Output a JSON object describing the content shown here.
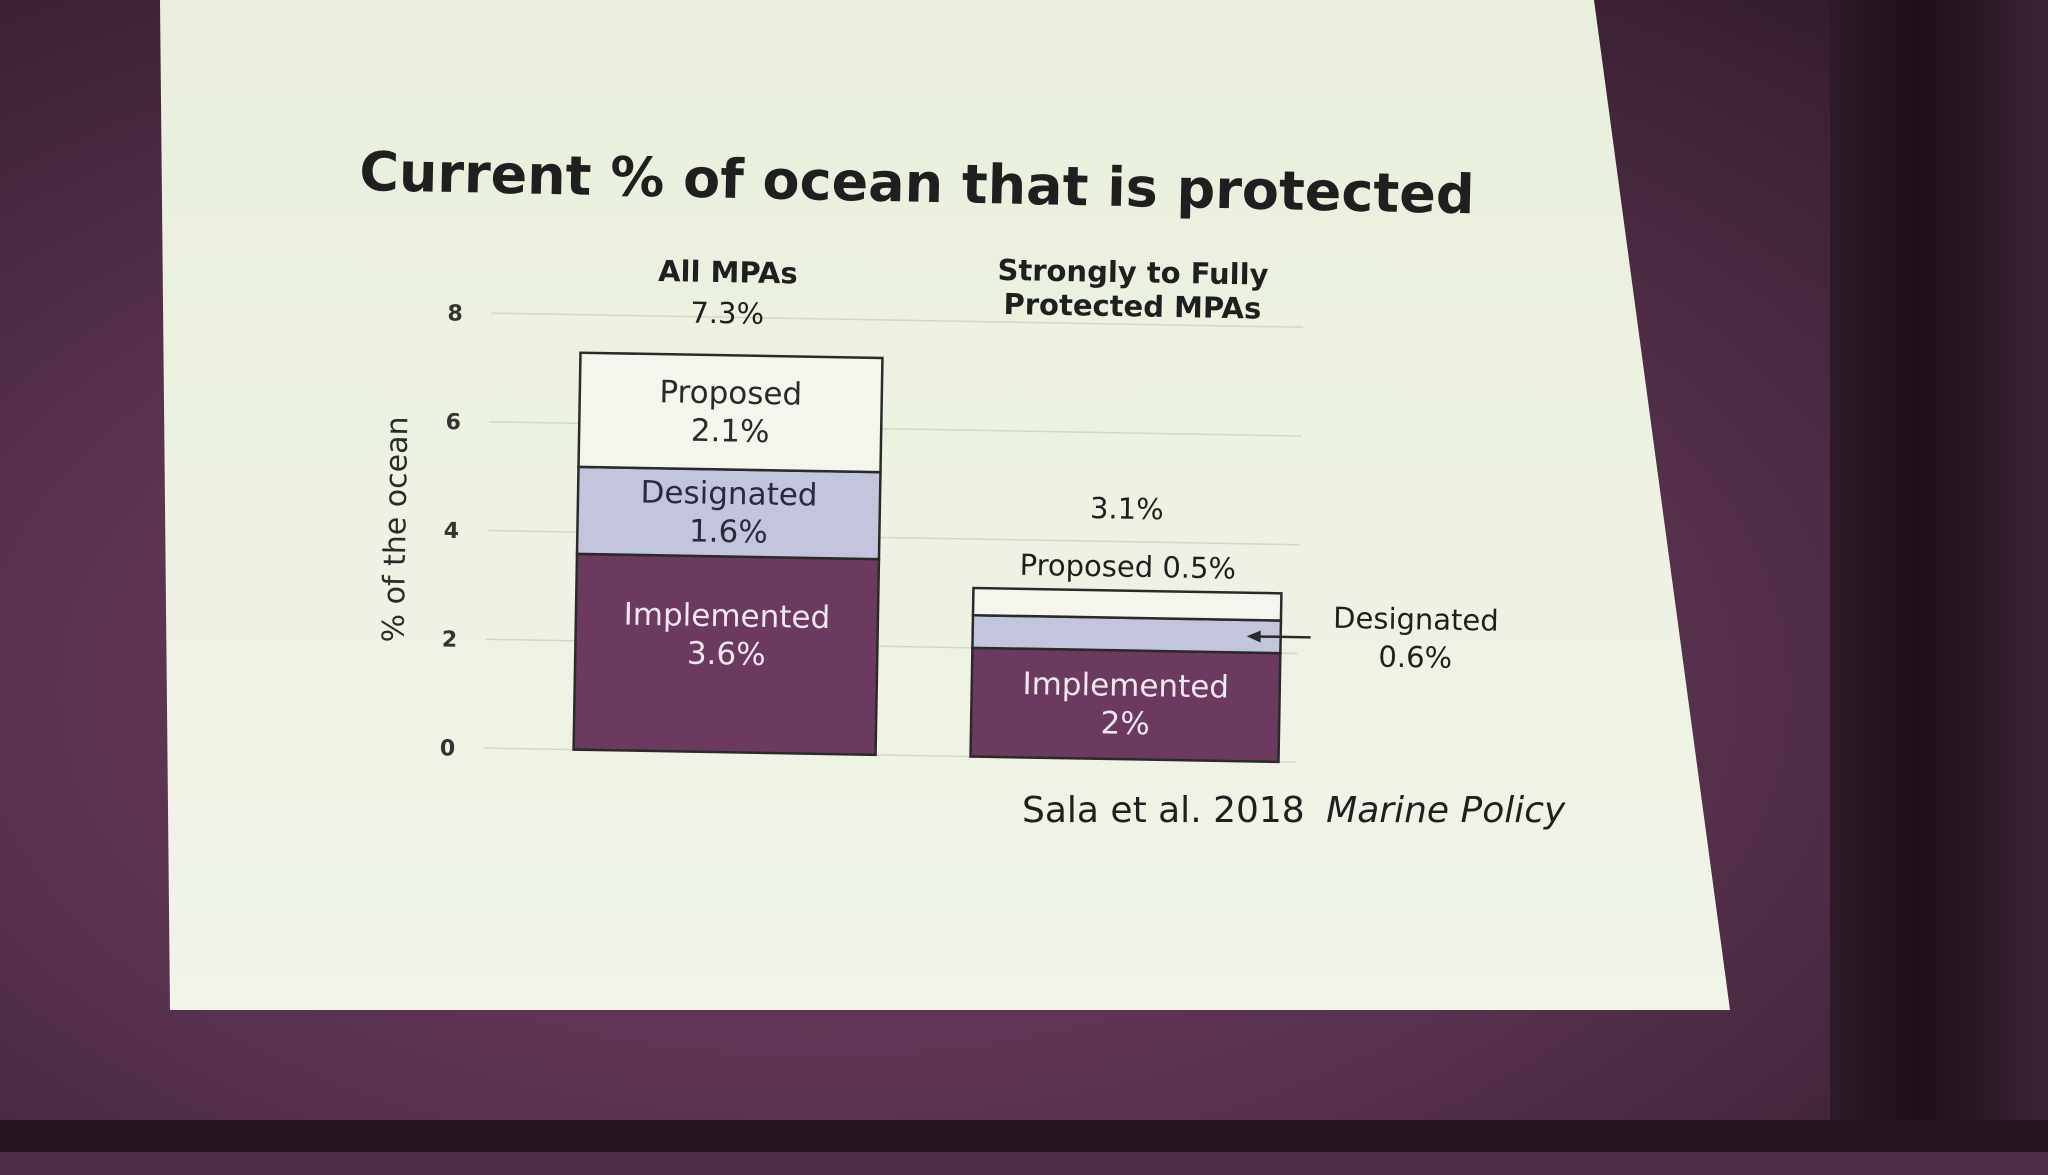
{
  "slide": {
    "title": "Current % of ocean that is protected",
    "citation_authors": "Sala et al. 2018",
    "citation_journal": "Marine Policy"
  },
  "colors": {
    "implemented": "#6b3a5e",
    "designated": "#c3c5dd",
    "proposed": "#f4f6ee",
    "background": "#edf2e3"
  },
  "chart_data": {
    "type": "bar",
    "stacked": true,
    "ylabel": "% of the ocean",
    "ylim": [
      0,
      8
    ],
    "yticks": [
      "0",
      "2",
      "4",
      "6",
      "8"
    ],
    "grid": true,
    "categories": [
      {
        "title_lines": [
          "All MPAs"
        ],
        "total_label": "7.3%"
      },
      {
        "title_lines": [
          "Strongly to Fully",
          "Protected MPAs"
        ],
        "total_label": "3.1%"
      }
    ],
    "series": [
      {
        "name": "Implemented",
        "values": [
          3.6,
          2.0
        ],
        "labels": [
          [
            "Implemented",
            "3.6%"
          ],
          [
            "Implemented",
            "2%"
          ]
        ]
      },
      {
        "name": "Designated",
        "values": [
          1.6,
          0.6
        ],
        "labels": [
          [
            "Designated",
            "1.6%"
          ],
          [
            "Designated",
            "0.6%"
          ]
        ]
      },
      {
        "name": "Proposed",
        "values": [
          2.1,
          0.5
        ],
        "labels": [
          [
            "Proposed",
            "2.1%"
          ],
          [
            "Proposed 0.5%"
          ]
        ]
      }
    ]
  }
}
